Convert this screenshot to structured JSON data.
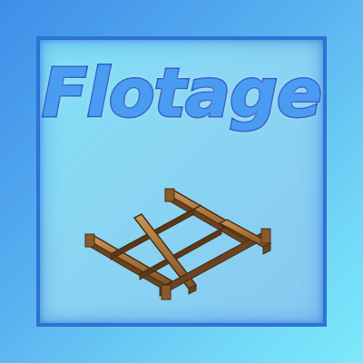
{
  "logo": {
    "title": "Flotage"
  },
  "colors": {
    "background_start": "#3d8ee9",
    "background_end": "#7ce9fb",
    "frame_border": "#2f72d4",
    "title_fill": "#4a9cf2",
    "title_outline": "#1d4fbf",
    "wood_light": "#b88446",
    "wood_dark": "#6b4320"
  },
  "icons": {
    "raft": "wooden-raft-icon"
  }
}
